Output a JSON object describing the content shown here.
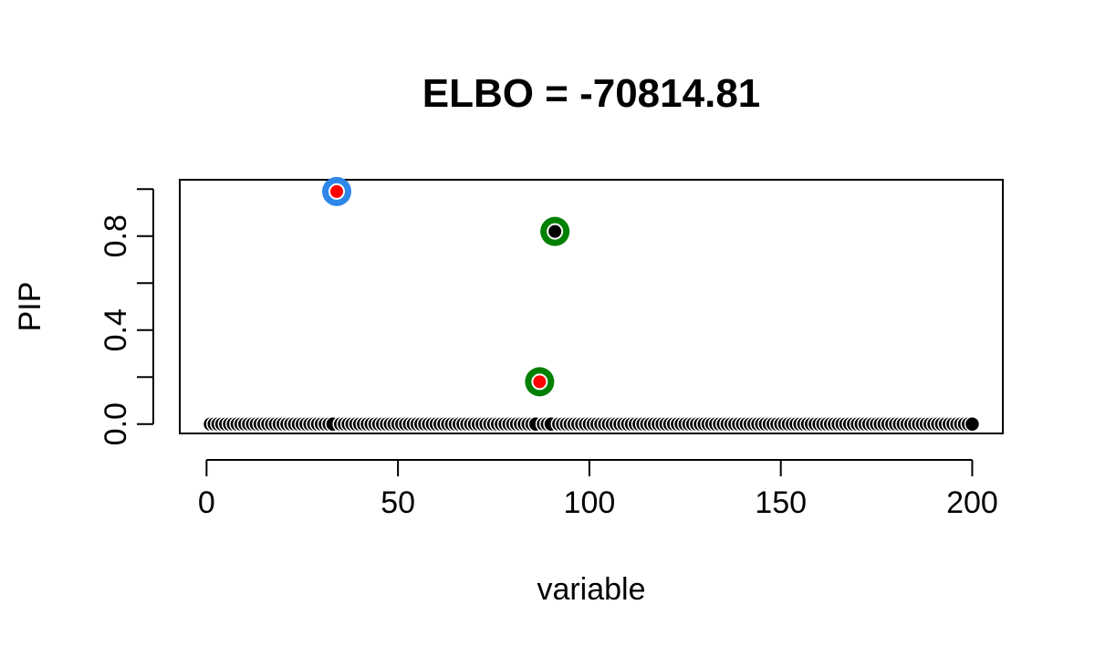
{
  "chart_data": {
    "type": "scatter",
    "title": "ELBO = -70814.81",
    "xlabel": "variable",
    "ylabel": "PIP",
    "xlim": [
      -7,
      208
    ],
    "ylim": [
      -0.04,
      1.04
    ],
    "xticks": [
      0,
      50,
      100,
      150,
      200
    ],
    "yticks": [
      0.0,
      0.2,
      0.4,
      0.6,
      0.8,
      1.0
    ],
    "ytick_labels": [
      {
        "value": 0.0,
        "label": "0.0"
      },
      {
        "value": 0.4,
        "label": "0.4"
      },
      {
        "value": 0.8,
        "label": "0.8"
      }
    ],
    "grid": false,
    "background_points": {
      "x_from": 1,
      "x_to": 200,
      "y": 0.0,
      "color": "#000000"
    },
    "highlighted_points": [
      {
        "x": 34,
        "y": 0.99,
        "ring_color": "#2C87E8",
        "fill_color": "#FF0000"
      },
      {
        "x": 91,
        "y": 0.82,
        "ring_color": "#008000",
        "fill_color": "#000000"
      },
      {
        "x": 87,
        "y": 0.18,
        "ring_color": "#008000",
        "fill_color": "#FF0000"
      }
    ]
  }
}
